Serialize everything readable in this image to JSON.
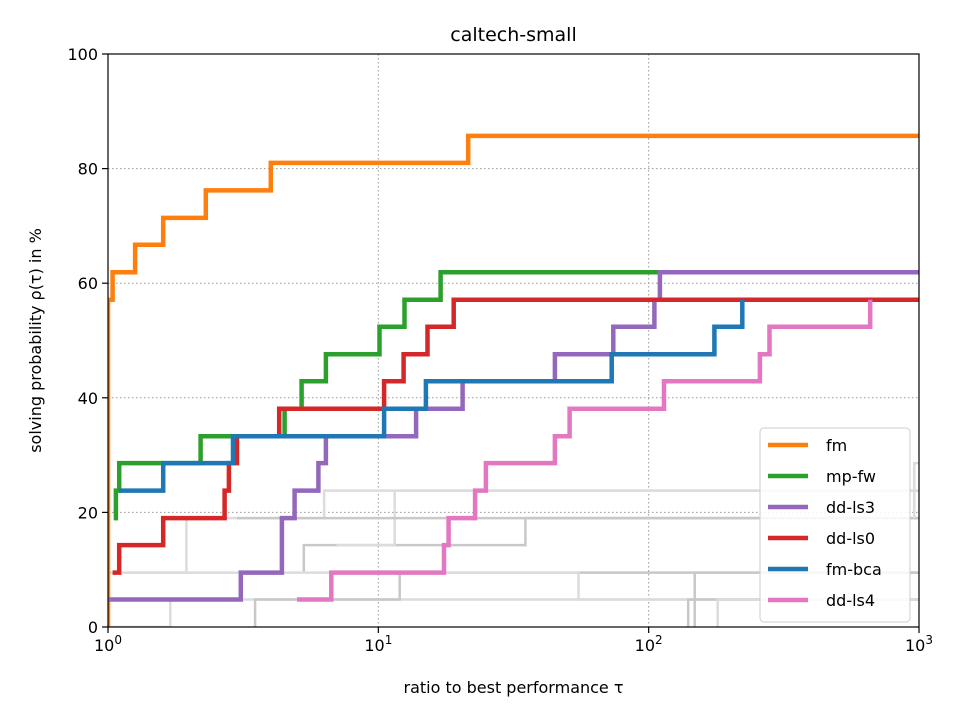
{
  "chart_data": {
    "type": "line",
    "title": "caltech-small",
    "xlabel": "ratio to best performance τ",
    "ylabel": "solving probability ρ(τ) in %",
    "xscale": "log",
    "xlim": [
      1,
      1000
    ],
    "ylim": [
      0,
      100
    ],
    "xticks": [
      {
        "value": 1,
        "base": "10",
        "exp": "0"
      },
      {
        "value": 10,
        "base": "10",
        "exp": "1"
      },
      {
        "value": 100,
        "base": "10",
        "exp": "2"
      },
      {
        "value": 1000,
        "base": "10",
        "exp": "3"
      }
    ],
    "yticks": [
      "0",
      "20",
      "40",
      "60",
      "80",
      "100"
    ],
    "grid": true,
    "legend_position": "bottom-right",
    "series": [
      {
        "name": "fm",
        "color": "#ff7f0e",
        "steps": [
          [
            1.0,
            0
          ],
          [
            1.0,
            57.1
          ],
          [
            1.04,
            61.9
          ],
          [
            1.26,
            66.7
          ],
          [
            1.6,
            71.4
          ],
          [
            2.3,
            76.2
          ],
          [
            4.0,
            81.0
          ],
          [
            21.5,
            85.7
          ],
          [
            1000,
            85.7
          ]
        ]
      },
      {
        "name": "mp-fw",
        "color": "#2ca02c",
        "steps": [
          [
            1.05,
            19.0
          ],
          [
            1.07,
            23.8
          ],
          [
            1.1,
            28.6
          ],
          [
            2.2,
            33.3
          ],
          [
            4.5,
            38.1
          ],
          [
            5.2,
            42.9
          ],
          [
            6.4,
            47.6
          ],
          [
            10.1,
            52.4
          ],
          [
            12.5,
            57.1
          ],
          [
            17.0,
            61.9
          ],
          [
            1000,
            61.9
          ]
        ]
      },
      {
        "name": "dd-ls3",
        "color": "#9467bd",
        "steps": [
          [
            1.0,
            4.8
          ],
          [
            3.1,
            9.5
          ],
          [
            4.4,
            19.0
          ],
          [
            4.9,
            23.8
          ],
          [
            6.0,
            28.6
          ],
          [
            6.4,
            33.3
          ],
          [
            13.8,
            38.1
          ],
          [
            20.5,
            42.9
          ],
          [
            45.0,
            47.6
          ],
          [
            74.0,
            52.4
          ],
          [
            105.0,
            57.1
          ],
          [
            110.0,
            61.9
          ],
          [
            1000,
            61.9
          ]
        ]
      },
      {
        "name": "dd-ls0",
        "color": "#d62728",
        "steps": [
          [
            1.04,
            9.5
          ],
          [
            1.1,
            14.3
          ],
          [
            1.6,
            19.0
          ],
          [
            2.7,
            23.8
          ],
          [
            2.8,
            28.6
          ],
          [
            3.0,
            33.3
          ],
          [
            4.3,
            38.1
          ],
          [
            10.5,
            42.9
          ],
          [
            12.4,
            47.6
          ],
          [
            15.2,
            52.4
          ],
          [
            19.0,
            57.1
          ],
          [
            1000,
            57.1
          ]
        ]
      },
      {
        "name": "fm-bca",
        "color": "#1f77b4",
        "steps": [
          [
            1.1,
            23.8
          ],
          [
            1.6,
            28.6
          ],
          [
            2.9,
            33.3
          ],
          [
            10.5,
            38.1
          ],
          [
            15.0,
            42.9
          ],
          [
            73.0,
            47.6
          ],
          [
            175.0,
            52.4
          ],
          [
            222.0,
            57.1
          ]
        ]
      },
      {
        "name": "dd-ls4",
        "color": "#e377c2",
        "steps": [
          [
            5.0,
            4.8
          ],
          [
            6.7,
            9.5
          ],
          [
            17.5,
            14.3
          ],
          [
            18.2,
            19.0
          ],
          [
            22.8,
            23.8
          ],
          [
            25.0,
            28.6
          ],
          [
            45.0,
            33.3
          ],
          [
            51.0,
            38.1
          ],
          [
            114.0,
            42.9
          ],
          [
            258.0,
            47.6
          ],
          [
            280.0,
            52.4
          ],
          [
            660.0,
            57.1
          ]
        ]
      }
    ],
    "background_series": [
      {
        "steps": [
          [
            1.0,
            0
          ],
          [
            1.7,
            4.8
          ],
          [
            1000,
            4.8
          ]
        ]
      },
      {
        "steps": [
          [
            3.5,
            0
          ],
          [
            3.5,
            4.8
          ],
          [
            12.0,
            9.5
          ],
          [
            1000,
            9.5
          ]
        ]
      },
      {
        "steps": [
          [
            1.0,
            9.5
          ],
          [
            1.95,
            9.5
          ],
          [
            1.95,
            19.0
          ],
          [
            6.3,
            23.8
          ],
          [
            1000,
            23.8
          ]
        ]
      },
      {
        "steps": [
          [
            5.3,
            9.5
          ],
          [
            5.3,
            14.3
          ],
          [
            35.0,
            19.0
          ],
          [
            1000,
            19.0
          ]
        ]
      },
      {
        "steps": [
          [
            7.0,
            14.3
          ],
          [
            11.5,
            19.0
          ],
          [
            11.5,
            23.8
          ],
          [
            75.0,
            23.8
          ],
          [
            1000,
            23.8
          ]
        ]
      },
      {
        "steps": [
          [
            3.0,
            19.0
          ],
          [
            6.2,
            19.0
          ],
          [
            1000,
            19.0
          ]
        ]
      },
      {
        "steps": [
          [
            1.0,
            9.5
          ],
          [
            55.0,
            9.5
          ],
          [
            55.0,
            4.8
          ],
          [
            1000,
            4.8
          ]
        ]
      },
      {
        "steps": [
          [
            140.0,
            0
          ],
          [
            140.0,
            4.8
          ],
          [
            1000,
            4.8
          ]
        ]
      },
      {
        "steps": [
          [
            180.0,
            0
          ],
          [
            180.0,
            4.8
          ],
          [
            1000,
            4.8
          ]
        ]
      },
      {
        "steps": [
          [
            148.0,
            0
          ],
          [
            148.0,
            9.5
          ],
          [
            1000,
            9.5
          ]
        ]
      },
      {
        "steps": [
          [
            960.0,
            19.0
          ],
          [
            960.0,
            28.6
          ],
          [
            1000,
            28.6
          ]
        ]
      }
    ]
  }
}
